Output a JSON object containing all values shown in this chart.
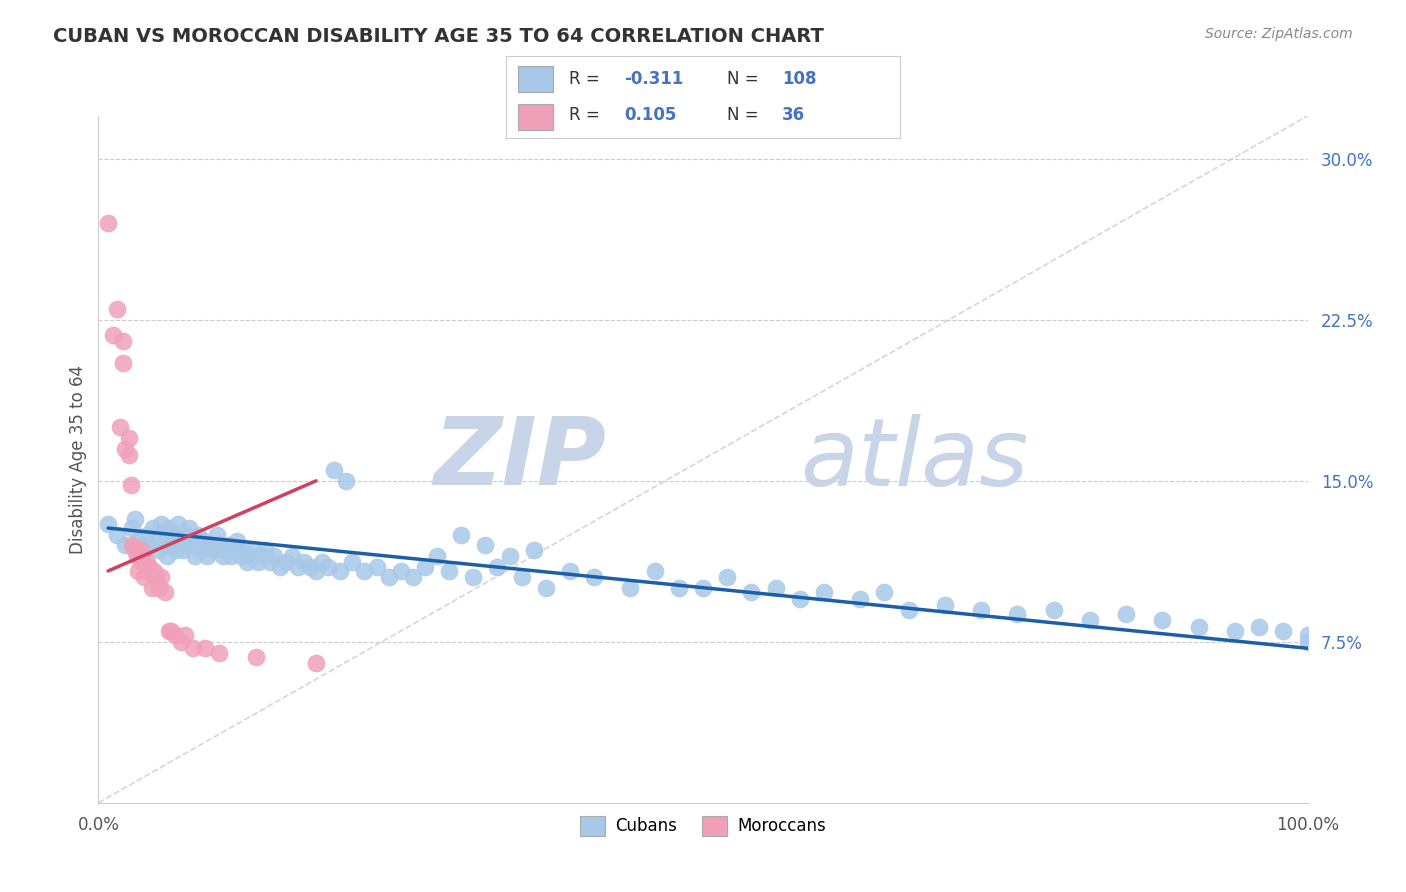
{
  "title": "CUBAN VS MOROCCAN DISABILITY AGE 35 TO 64 CORRELATION CHART",
  "source": "Source: ZipAtlas.com",
  "ylabel": "Disability Age 35 to 64",
  "xlim": [
    0.0,
    1.0
  ],
  "ylim": [
    0.0,
    0.32
  ],
  "cuban_color": "#a8c8e8",
  "moroccan_color": "#f0a0b8",
  "line_cuban_color": "#1a5fa8",
  "line_moroccan_color": "#d04060",
  "watermark_zip": "ZIP",
  "watermark_atlas": "atlas",
  "watermark_color": "#c8d4e8",
  "cubans_label": "Cubans",
  "moroccans_label": "Moroccans",
  "cubans_x": [
    0.008,
    0.015,
    0.022,
    0.028,
    0.03,
    0.033,
    0.038,
    0.04,
    0.042,
    0.045,
    0.048,
    0.05,
    0.052,
    0.055,
    0.057,
    0.058,
    0.06,
    0.062,
    0.064,
    0.065,
    0.066,
    0.068,
    0.07,
    0.072,
    0.074,
    0.075,
    0.078,
    0.08,
    0.082,
    0.085,
    0.087,
    0.09,
    0.092,
    0.095,
    0.098,
    0.1,
    0.103,
    0.105,
    0.108,
    0.11,
    0.113,
    0.115,
    0.118,
    0.12,
    0.123,
    0.125,
    0.128,
    0.132,
    0.135,
    0.138,
    0.142,
    0.145,
    0.15,
    0.155,
    0.16,
    0.165,
    0.17,
    0.175,
    0.18,
    0.185,
    0.19,
    0.2,
    0.21,
    0.22,
    0.23,
    0.24,
    0.25,
    0.26,
    0.27,
    0.28,
    0.29,
    0.31,
    0.33,
    0.35,
    0.37,
    0.39,
    0.41,
    0.44,
    0.46,
    0.48,
    0.5,
    0.52,
    0.54,
    0.56,
    0.58,
    0.6,
    0.63,
    0.65,
    0.67,
    0.7,
    0.73,
    0.76,
    0.79,
    0.82,
    0.85,
    0.88,
    0.91,
    0.94,
    0.96,
    0.98,
    1.0,
    1.0,
    0.195,
    0.205,
    0.3,
    0.32,
    0.34,
    0.36
  ],
  "cubans_y": [
    0.13,
    0.125,
    0.12,
    0.128,
    0.132,
    0.122,
    0.118,
    0.125,
    0.12,
    0.128,
    0.122,
    0.118,
    0.13,
    0.125,
    0.115,
    0.128,
    0.12,
    0.122,
    0.118,
    0.125,
    0.13,
    0.12,
    0.118,
    0.125,
    0.122,
    0.128,
    0.12,
    0.115,
    0.125,
    0.118,
    0.122,
    0.115,
    0.12,
    0.118,
    0.125,
    0.12,
    0.115,
    0.118,
    0.12,
    0.115,
    0.118,
    0.122,
    0.115,
    0.118,
    0.112,
    0.115,
    0.118,
    0.112,
    0.115,
    0.118,
    0.112,
    0.115,
    0.11,
    0.112,
    0.115,
    0.11,
    0.112,
    0.11,
    0.108,
    0.112,
    0.11,
    0.108,
    0.112,
    0.108,
    0.11,
    0.105,
    0.108,
    0.105,
    0.11,
    0.115,
    0.108,
    0.105,
    0.11,
    0.105,
    0.1,
    0.108,
    0.105,
    0.1,
    0.108,
    0.1,
    0.1,
    0.105,
    0.098,
    0.1,
    0.095,
    0.098,
    0.095,
    0.098,
    0.09,
    0.092,
    0.09,
    0.088,
    0.09,
    0.085,
    0.088,
    0.085,
    0.082,
    0.08,
    0.082,
    0.08,
    0.078,
    0.075,
    0.155,
    0.15,
    0.125,
    0.12,
    0.115,
    0.118
  ],
  "moroccans_x": [
    0.008,
    0.012,
    0.015,
    0.018,
    0.02,
    0.02,
    0.022,
    0.025,
    0.025,
    0.027,
    0.028,
    0.03,
    0.032,
    0.033,
    0.035,
    0.036,
    0.038,
    0.04,
    0.04,
    0.042,
    0.044,
    0.046,
    0.048,
    0.05,
    0.052,
    0.055,
    0.058,
    0.06,
    0.063,
    0.068,
    0.072,
    0.078,
    0.088,
    0.1,
    0.13,
    0.18
  ],
  "moroccans_y": [
    0.27,
    0.218,
    0.23,
    0.175,
    0.215,
    0.205,
    0.165,
    0.17,
    0.162,
    0.148,
    0.12,
    0.118,
    0.115,
    0.108,
    0.118,
    0.112,
    0.105,
    0.108,
    0.112,
    0.11,
    0.1,
    0.108,
    0.105,
    0.1,
    0.105,
    0.098,
    0.08,
    0.08,
    0.078,
    0.075,
    0.078,
    0.072,
    0.072,
    0.07,
    0.068,
    0.065
  ],
  "cuban_line_x": [
    0.008,
    1.0
  ],
  "cuban_line_y": [
    0.128,
    0.072
  ],
  "moroccan_line_x": [
    0.008,
    0.18
  ],
  "moroccan_line_y": [
    0.108,
    0.15
  ]
}
